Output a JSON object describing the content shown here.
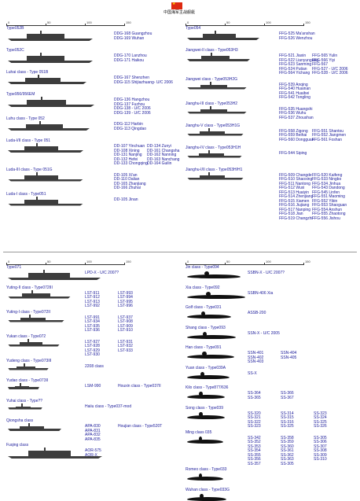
{
  "title": "中国海军主战舰艇",
  "rulers": {
    "top_left": [
      "0",
      "50",
      "100",
      "150"
    ],
    "top_right": [
      "0",
      "50",
      "100",
      "150"
    ],
    "bottom_left": [
      "0",
      "50",
      "100",
      "150"
    ],
    "bottom_right": [
      "0",
      "50",
      "100",
      "150"
    ]
  },
  "left_top": [
    {
      "cls": "Type052B",
      "ships": [
        "DDG-168 Guangzhou",
        "DDG-169 Wuhan"
      ]
    },
    {
      "cls": "Type052C",
      "ships": [
        "DDG-170 Lanzhou",
        "DDG-171 Haikou"
      ]
    },
    {
      "cls": "Luhai class - Type 051B",
      "ships": [
        "DDG-167 Shenzhen",
        "DDG-115 Shijiazhuang- U/C 2006"
      ]
    },
    {
      "cls": "Type956/956EM",
      "ships": [
        "DDG-136 Hangzhou",
        "DDG-137 Fuzhou",
        "DDG-138 - U/C 2006",
        "DDG-139 - U/C 2006"
      ]
    },
    {
      "cls": "Luhu class - Type 052",
      "ships": [
        "DDG-112 Harbin",
        "DDG-113 Qingdao"
      ]
    },
    {
      "cls": "Luda-I/II class - Type 051",
      "ships": [
        "DD-107 Yinchuan",
        "DD-108 Xining",
        "DD-131 Nanjing",
        "DD-132 Hefei",
        "DD-133 Chongqing"
      ],
      "ships2": [
        "DD-134 Zunyi",
        "DD-161 Changsha",
        "DD-162 Nanning",
        "DD-163 Nanchang",
        "DD-164 Guilin"
      ]
    },
    {
      "cls": "Luda-III class - Type 051G",
      "ships": [
        "DD-105 Xi'an",
        "DD-110 Dalian",
        "DD-165 Zhanjiang",
        "DD-166 Zhuhai"
      ]
    },
    {
      "cls": "Luda-I class - Type051",
      "ships": [
        "DD-105 Jinan"
      ]
    }
  ],
  "right_top": [
    {
      "cls": "Type054",
      "ships": [
        "FFG-525 Ma'anshan",
        "FFG-526 Wenzhou"
      ]
    },
    {
      "cls": "Jiangwei-II class - Type053H3",
      "ships": [
        "FFG-521 Jiaxin",
        "FFG-522 Lianyungang",
        "FFG-523 Sanming",
        "FFG-524 Putian",
        "FFG-564 Yichang"
      ],
      "ships2": [
        "FFG-565 Yulin",
        "FFG-566 Yiyi",
        "FFG-567",
        "FFG-527 - U/C 2006",
        "FFG-528 - U/C 2006"
      ]
    },
    {
      "cls": "Jiangwei class - Type053H2G",
      "ships": [
        "FFG-539 Anqing",
        "FFG-540 Huainan",
        "FFG-541 Huaibei",
        "FFG-542 Tongling"
      ]
    },
    {
      "cls": "Jianghu-III class - Type053H2",
      "ships": [
        "FFG-535 Huangshi",
        "FFG-536 Wuhu",
        "FFG-537 Zhoushan"
      ]
    },
    {
      "cls": "Jianghu-V class - Type053H1G",
      "ships": [
        "FFG-558 Zigong",
        "FFG-559 Beihai",
        "FFG-560 Dongguan"
      ],
      "ships2": [
        "FFG-551 Shantou",
        "FFG-552 Jiangmen",
        "FFG-561 Foshan"
      ]
    },
    {
      "cls": "Jianghu-IV class - Type053H1H",
      "ships": [
        "FFG-544 Siping"
      ]
    },
    {
      "cls": "Jianghu-I/II class - Type053H/H1",
      "ships": [
        "FFG-509 Changde",
        "FFG-510 Shaoxing",
        "FFG-511 Nantong",
        "FFG-512 Wuxi",
        "FFG-513 Huaiyin",
        "FFG-514 Zhenjiang",
        "FFG-515 Xiamen",
        "FFG-516 Jiujiang",
        "FFG-517 Nanping",
        "FFG-518 Jian",
        "FFG-519 Changzhi"
      ],
      "ships2": [
        "FFG-520 Kaifeng",
        "FFG-533 Ningbo",
        "FFG-534 Jinhua",
        "FFG-543 Dandong",
        "FFG-545 Linfen",
        "FFG-551 Maoming",
        "FFG-552 Yibin",
        "FFG-553 Shaoguan",
        "FFG-554 Anshun",
        "FFG-555 Zhaotong",
        "FFG-556 Jishou"
      ]
    }
  ],
  "left_bottom": [
    {
      "cls": "Type071",
      "ships": [
        "LPD-X - U/C 2007?"
      ]
    },
    {
      "cls": "Yuting-II class - Type072III",
      "ships": [
        "LST-911",
        "LST-912",
        "LST-913",
        "LST-992"
      ],
      "ships2": [
        "LST-993",
        "LST-994",
        "LST-995",
        "LST-996"
      ]
    },
    {
      "cls": "Yuting-I class - Type072II",
      "ships": [
        "LST-991",
        "LST-934",
        "LST-935",
        "LST-936"
      ],
      "ships2": [
        "LST-937",
        "LST-908",
        "LST-909",
        "LST-910"
      ]
    },
    {
      "cls": "Yukan class - Type072",
      "ships": [
        "LST-927",
        "LST-928",
        "LST-929",
        "LST-930"
      ],
      "ships2": [
        "LST-931",
        "LST-932",
        "LST-933"
      ]
    },
    {
      "cls": "Yudeng class - Type073III",
      "ships": [
        "2208 class"
      ]
    },
    {
      "cls": "Yudao class - Type073II",
      "ships": [
        "LSM-990"
      ],
      "ships2": [
        "Houxin class - Type037II"
      ]
    },
    {
      "cls": "Yuhai class - Type??",
      "ships": [
        "Haiiu class - Type037-mod"
      ]
    },
    {
      "cls": "Qiongsha class",
      "ships": [
        "APA-830",
        "APA-831",
        "APA-832",
        "APA-835"
      ],
      "ships2": [
        "Houjian class - Type520T"
      ]
    },
    {
      "cls": "Fuqing class",
      "ships": [
        "AOR-575",
        "AOR-X"
      ]
    }
  ],
  "right_bottom": [
    {
      "cls": "Jin class - Type094",
      "ships": [
        "SSBN-X - U/C 2007?"
      ]
    },
    {
      "cls": "Xia class - Type092",
      "ships": [
        "SSBN-406 Xia"
      ]
    },
    {
      "cls": "Golf class - Type031",
      "ships": [
        "ASSB-200"
      ]
    },
    {
      "cls": "Shang class - Type093",
      "ships": [
        "SSN-X - U/C 2005"
      ]
    },
    {
      "cls": "Han class - Type091",
      "ships": [
        "SSN-401",
        "SSN-402",
        "SSN-403"
      ],
      "ships2": [
        "SSN-404",
        "SSN-405"
      ]
    },
    {
      "cls": "Yuan class - Type039A",
      "ships": [
        "SS-X"
      ]
    },
    {
      "cls": "Kilo class - Type877/636",
      "ships": [
        "SS-364",
        "SS-365"
      ],
      "ships2": [
        "SS-366",
        "SS-367"
      ]
    },
    {
      "cls": "Song class - Type039",
      "ships": [
        "SS-320",
        "SS-321",
        "SS-322",
        "SS-323"
      ],
      "ships2": [
        "SS-314",
        "SS-315",
        "SS-316",
        "SS-325"
      ],
      "ships3": [
        "SS-323",
        "SS-324",
        "SS-325",
        "SS-326"
      ]
    },
    {
      "cls": "Ming class 035",
      "ships": [
        "SS-342",
        "SS-352",
        "SS-353",
        "SS-354",
        "SS-355",
        "SS-356",
        "SS-357"
      ],
      "ships2": [
        "SS-358",
        "SS-359",
        "SS-360",
        "SS-361",
        "SS-362",
        "SS-363",
        "SS-305"
      ],
      "ships3": [
        "SS-305",
        "SS-306",
        "SS-307",
        "SS-308",
        "SS-309",
        "SS-310"
      ]
    },
    {
      "cls": "Romeo class - Type033",
      "ships": []
    },
    {
      "cls": "Wuhan class - Type033G",
      "ships": []
    }
  ],
  "colors": {
    "text": "#1a1a9a",
    "ship": "#3d3d3d",
    "sub": "#111111",
    "flag": "#de2910",
    "star": "#ffde00"
  }
}
